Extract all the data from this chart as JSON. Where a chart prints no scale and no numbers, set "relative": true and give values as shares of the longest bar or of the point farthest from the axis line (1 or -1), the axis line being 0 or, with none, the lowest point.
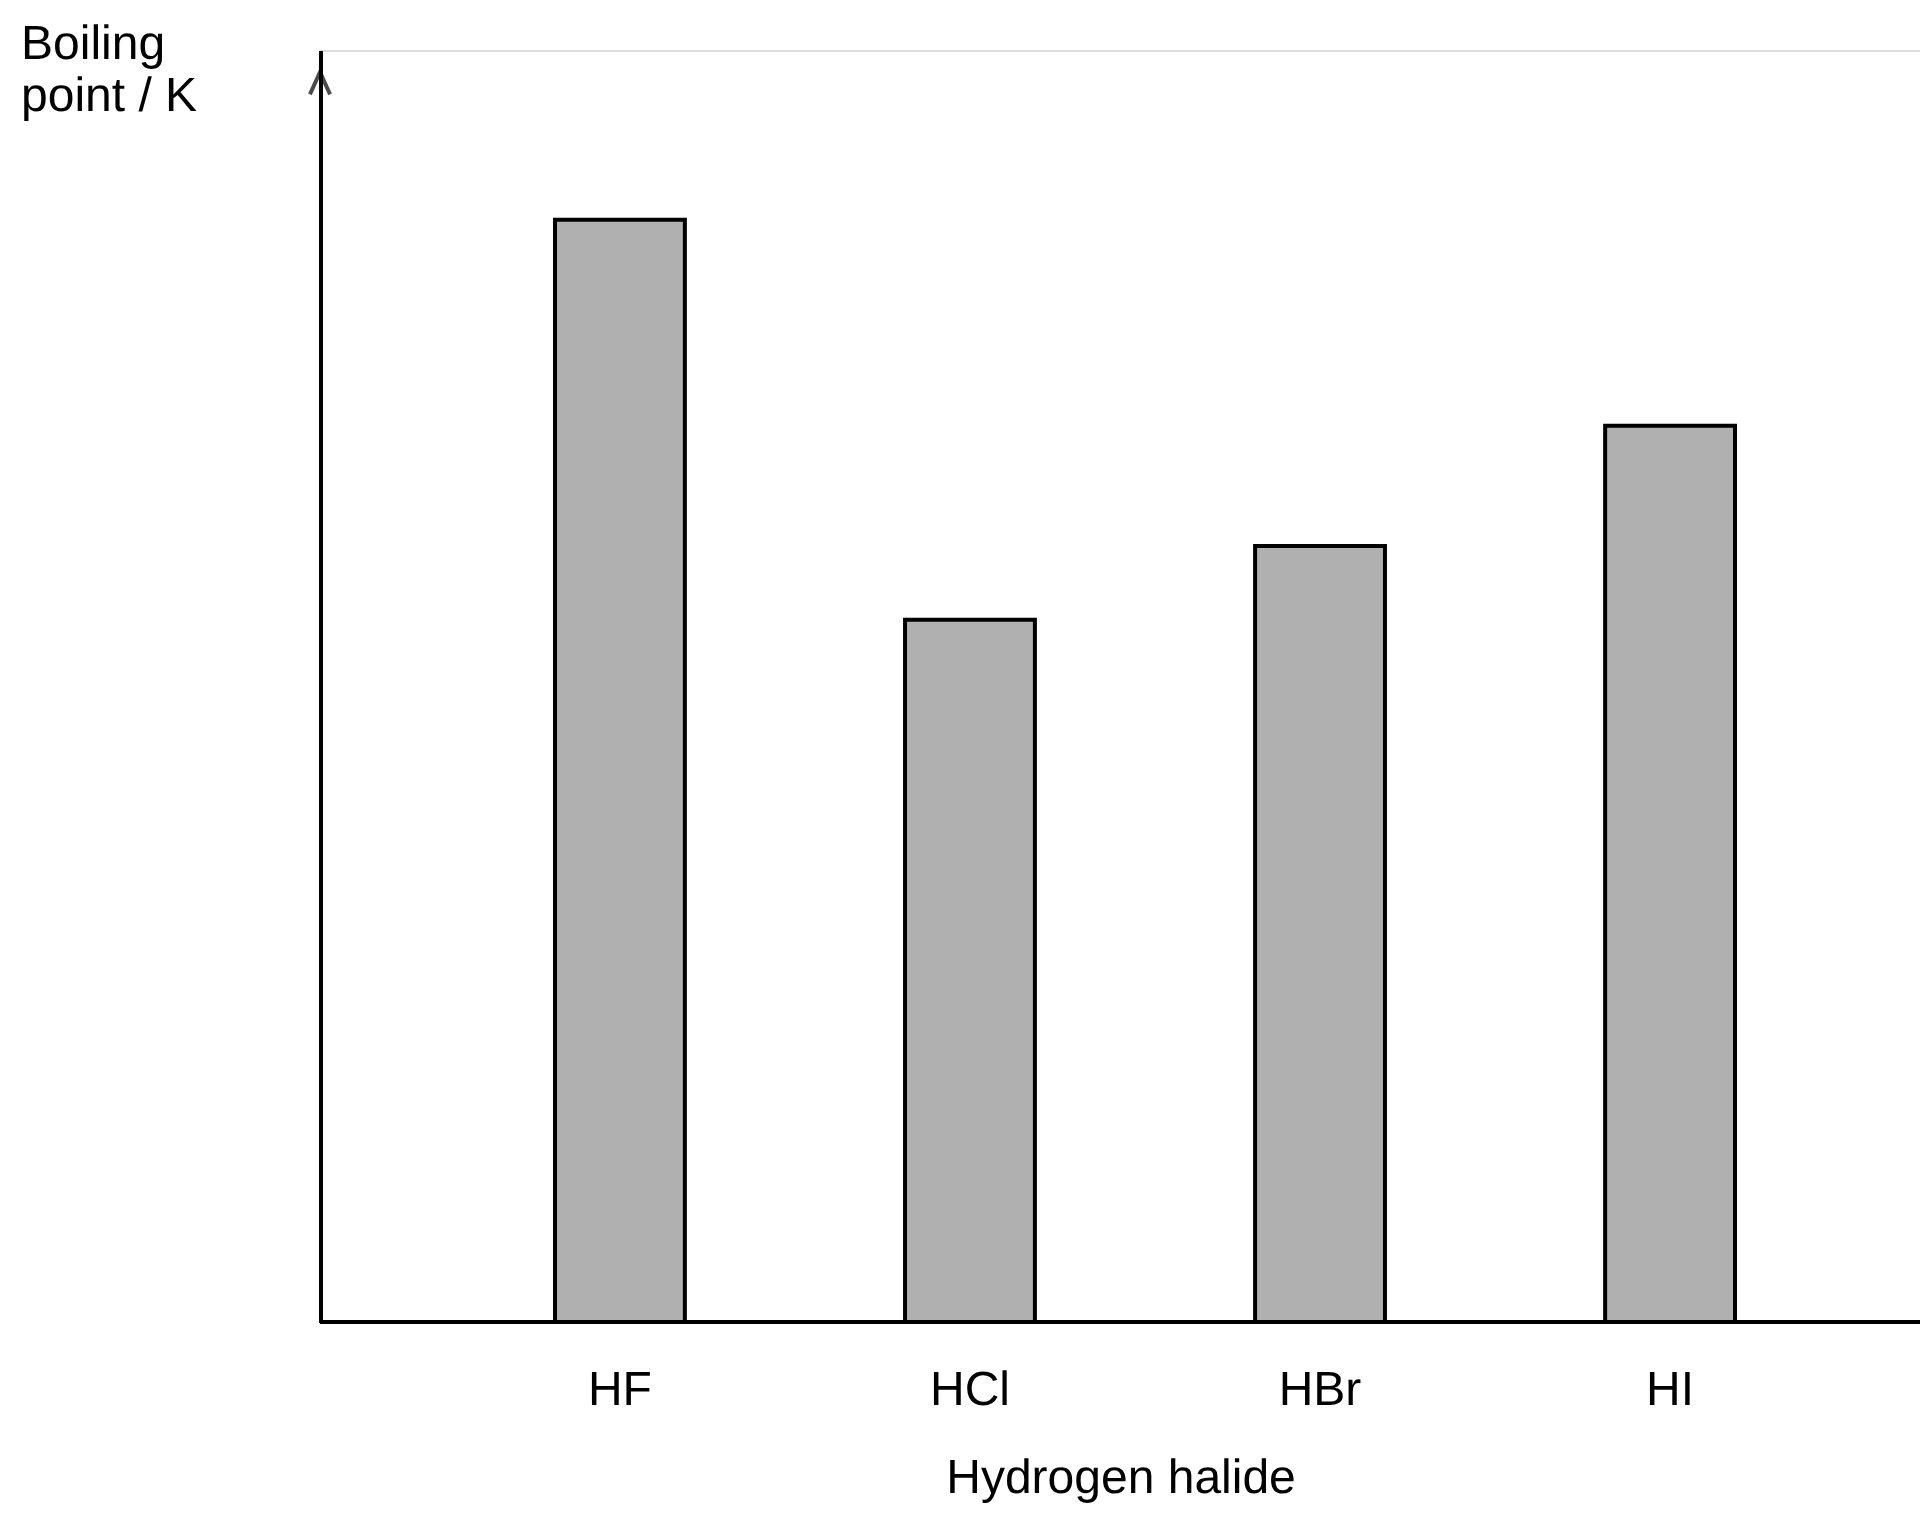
{
  "chart_data": {
    "type": "bar",
    "relative": true,
    "xlabel": "Hydrogen halide",
    "ylabel": "Boiling point / K",
    "categories": [
      "HF",
      "HCl",
      "HBr",
      "HI"
    ],
    "values": [
      1,
      0.637,
      0.704,
      0.813
    ],
    "color": "#b0b0b0",
    "grid": false
  }
}
